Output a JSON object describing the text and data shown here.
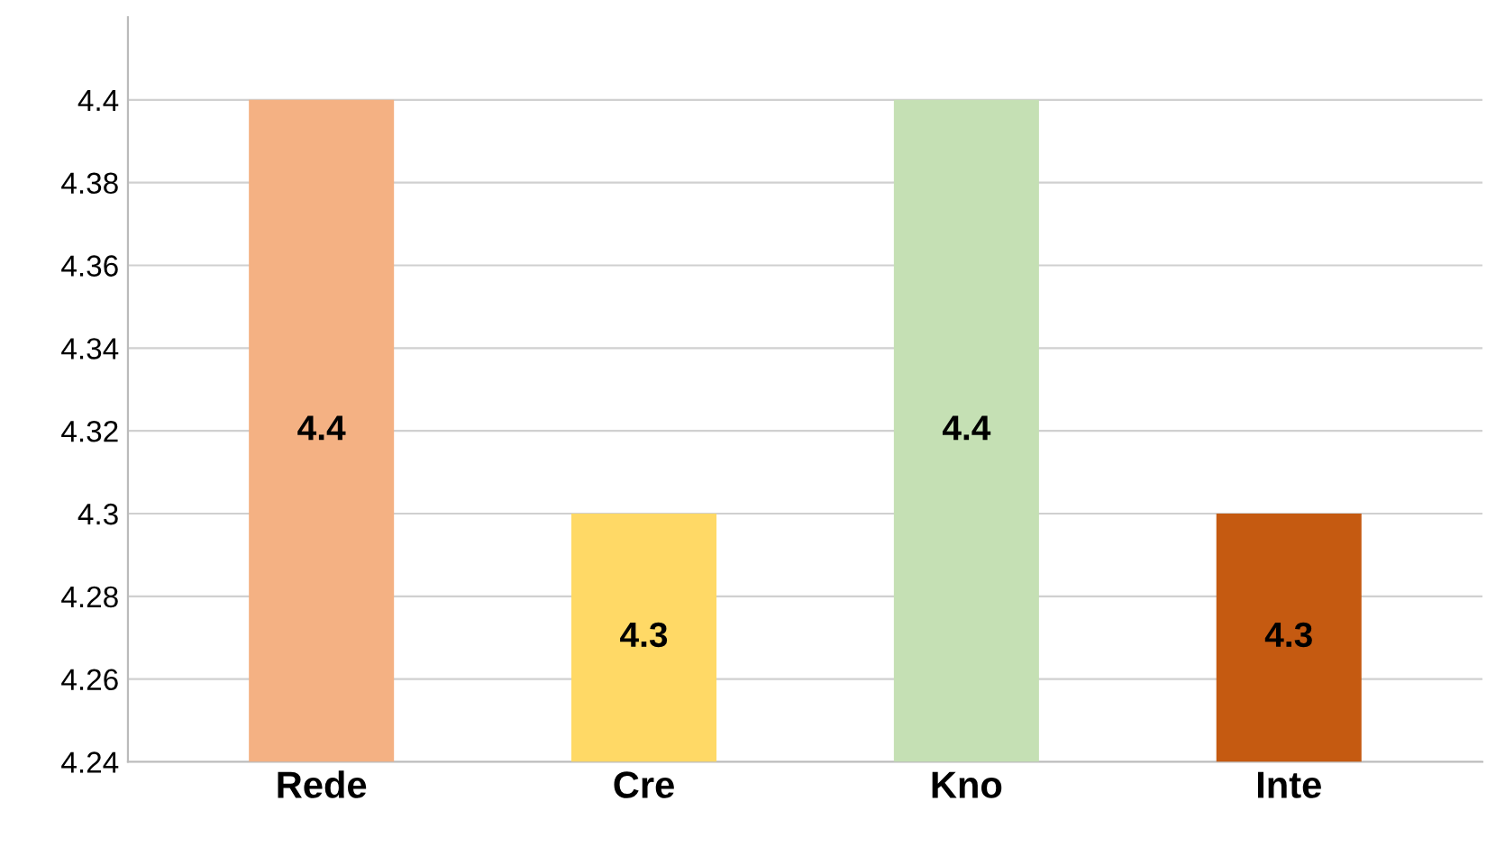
{
  "chart_data": {
    "type": "bar",
    "categories": [
      "Rede",
      "Cre",
      "Kno",
      "Inte"
    ],
    "values": [
      4.4,
      4.3,
      4.4,
      4.3
    ],
    "colors": [
      "#f4b183",
      "#ffd966",
      "#c5e0b4",
      "#c55a11"
    ],
    "ylim": [
      4.24,
      4.42
    ],
    "yticks": [
      4.24,
      4.26,
      4.28,
      4.3,
      4.32,
      4.34,
      4.36,
      4.38,
      4.4
    ],
    "grid": "y",
    "data_labels": true
  }
}
